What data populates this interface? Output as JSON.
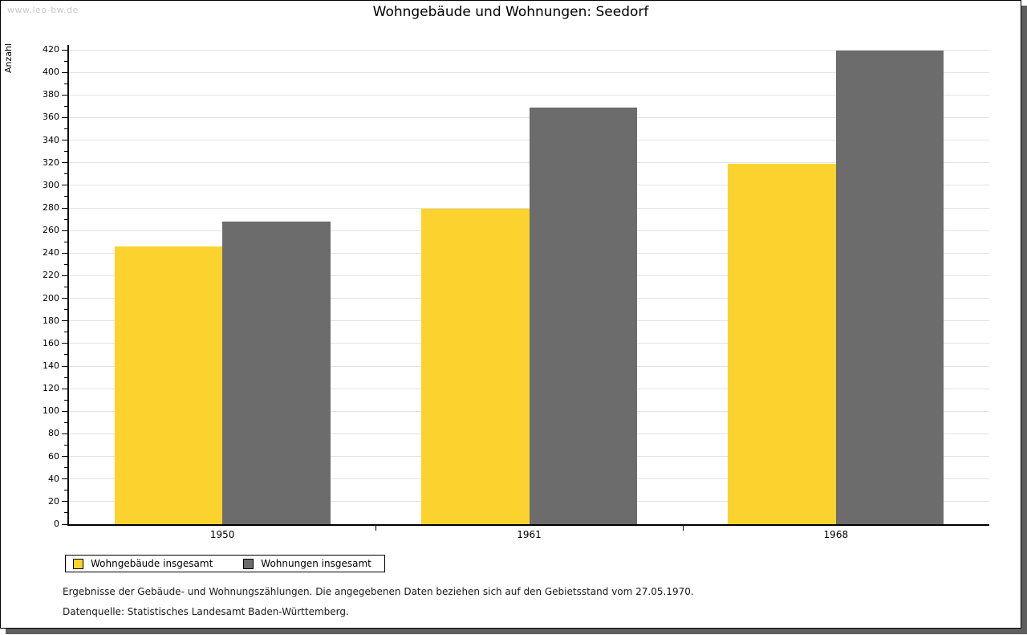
{
  "watermark": "www.leo-bw.de",
  "title": "Wohngebäude und Wohnungen: Seedorf",
  "chart_data": {
    "type": "bar",
    "title": "Wohngebäude und Wohnungen: Seedorf",
    "categories": [
      "1950",
      "1961",
      "1968"
    ],
    "series": [
      {
        "name": "Wohngebäude insgesamt",
        "color": "#fcd32e",
        "values": [
          246,
          279,
          319
        ]
      },
      {
        "name": "Wohnungen insgesamt",
        "color": "#6c6c6c",
        "values": [
          268,
          369,
          419
        ]
      }
    ],
    "xlabel": "",
    "ylabel": "Anzahl",
    "ylim": [
      0,
      420
    ],
    "ytick_step": 20,
    "yminortick_step": 10,
    "grid": true,
    "legend_position": "bottom-left",
    "gridline_color": "#e3e3e3"
  },
  "footnotes": [
    "Ergebnisse der Gebäude- und Wohnungszählungen. Die angegebenen Daten beziehen sich auf den Gebietsstand vom 27.05.1970.",
    "Datenquelle: Statistisches Landesamt Baden-Württemberg."
  ]
}
